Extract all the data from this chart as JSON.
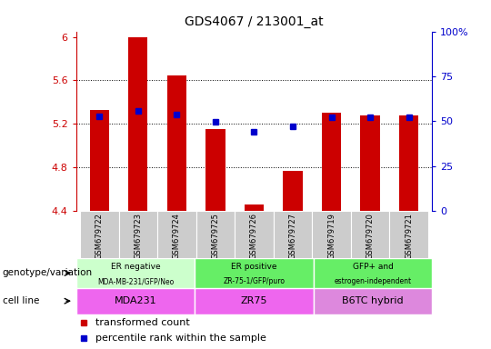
{
  "title": "GDS4067 / 213001_at",
  "samples": [
    "GSM679722",
    "GSM679723",
    "GSM679724",
    "GSM679725",
    "GSM679726",
    "GSM679727",
    "GSM679719",
    "GSM679720",
    "GSM679721"
  ],
  "bar_values": [
    5.33,
    6.0,
    5.65,
    5.15,
    4.46,
    4.77,
    5.3,
    5.28,
    5.28
  ],
  "bar_bottom": 4.4,
  "dot_values": [
    5.27,
    5.32,
    5.29,
    5.22,
    5.13,
    5.18,
    5.26,
    5.26,
    5.26
  ],
  "ylim_left": [
    4.4,
    6.05
  ],
  "ylim_right": [
    0,
    100
  ],
  "yticks_left": [
    4.4,
    4.8,
    5.2,
    5.6,
    6.0
  ],
  "ytick_labels_left": [
    "4.4",
    "4.8",
    "5.2",
    "5.6",
    "6"
  ],
  "yticks_right": [
    0,
    25,
    50,
    75,
    100
  ],
  "ytick_labels_right": [
    "0",
    "25",
    "50",
    "75",
    "100%"
  ],
  "grid_lines": [
    4.8,
    5.2,
    5.6
  ],
  "bar_color": "#cc0000",
  "dot_color": "#0000cc",
  "genotype_groups": [
    {
      "label": "ER negative",
      "sublabel": "MDA-MB-231/GFP/Neo",
      "start": 0,
      "end": 3,
      "color": "#ccffcc"
    },
    {
      "label": "ER positive",
      "sublabel": "ZR-75-1/GFP/puro",
      "start": 3,
      "end": 6,
      "color": "#66ee66"
    },
    {
      "label": "GFP+ and",
      "sublabel": "estrogen-independent",
      "start": 6,
      "end": 9,
      "color": "#66ee66"
    }
  ],
  "cell_line_groups": [
    {
      "label": "MDA231",
      "start": 0,
      "end": 3,
      "color": "#ee66ee"
    },
    {
      "label": "ZR75",
      "start": 3,
      "end": 6,
      "color": "#ee66ee"
    },
    {
      "label": "B6TC hybrid",
      "start": 6,
      "end": 9,
      "color": "#dd88dd"
    }
  ],
  "legend_items": [
    {
      "label": "transformed count",
      "color": "#cc0000"
    },
    {
      "label": "percentile rank within the sample",
      "color": "#0000cc"
    }
  ],
  "left_labels": [
    "genotype/variation",
    "cell line"
  ],
  "background_color": "#ffffff",
  "tick_bg_color": "#cccccc",
  "bar_width": 0.5,
  "dot_marker_size": 5
}
